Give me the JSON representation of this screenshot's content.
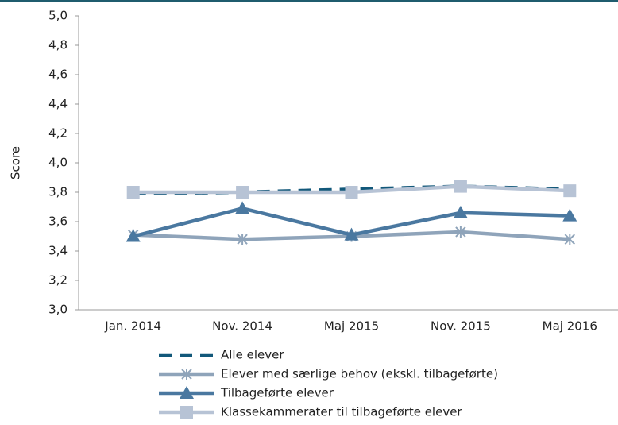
{
  "chart_data": {
    "type": "line",
    "y_label": "Score",
    "categories": [
      "Jan. 2014",
      "Nov. 2014",
      "Maj 2015",
      "Nov. 2015",
      "Maj 2016"
    ],
    "series": [
      {
        "name": "Alle elever",
        "color": "#12587a",
        "line_style": "dashed",
        "marker": "none",
        "values": [
          3.79,
          3.8,
          3.82,
          3.84,
          3.82
        ]
      },
      {
        "name": "Elever med særlige behov (ekskl. tilbageførte)",
        "color": "#8fa4ba",
        "line_style": "solid",
        "marker": "asterisk",
        "values": [
          3.51,
          3.48,
          3.5,
          3.53,
          3.48
        ]
      },
      {
        "name": "Tilbageførte elever",
        "color": "#4a78a0",
        "line_style": "solid",
        "marker": "triangle",
        "values": [
          3.5,
          3.69,
          3.51,
          3.66,
          3.64
        ]
      },
      {
        "name": "Klassekammerater til tilbageførte elever",
        "color": "#b7c3d5",
        "line_style": "solid",
        "marker": "square",
        "values": [
          3.8,
          3.8,
          3.8,
          3.84,
          3.81
        ]
      }
    ],
    "ylim": [
      3.0,
      5.0
    ],
    "yticks": [
      {
        "value": 3.0,
        "label": "3,0"
      },
      {
        "value": 3.2,
        "label": "3,2"
      },
      {
        "value": 3.4,
        "label": "3,4"
      },
      {
        "value": 3.6,
        "label": "3,6"
      },
      {
        "value": 3.8,
        "label": "3,8"
      },
      {
        "value": 4.0,
        "label": "4,0"
      },
      {
        "value": 4.2,
        "label": "4,2"
      },
      {
        "value": 4.4,
        "label": "4,4"
      },
      {
        "value": 4.6,
        "label": "4,6"
      },
      {
        "value": 4.8,
        "label": "4,8"
      },
      {
        "value": 5.0,
        "label": "5,0"
      }
    ],
    "grid": false
  }
}
